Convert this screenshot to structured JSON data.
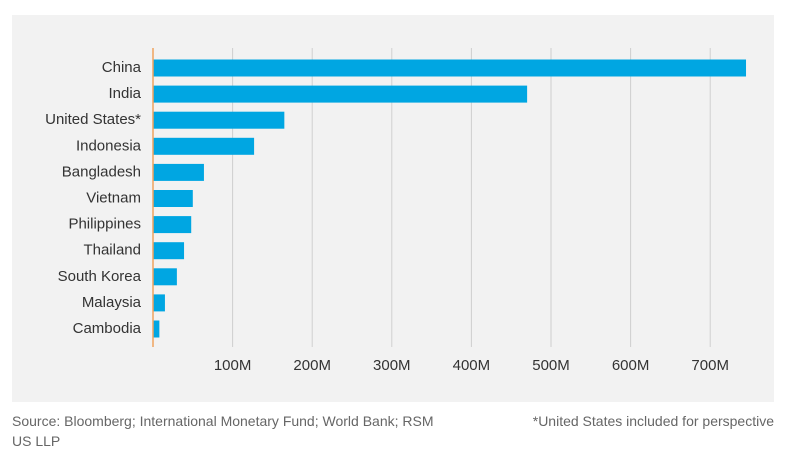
{
  "chart_data": {
    "type": "bar",
    "orientation": "horizontal",
    "categories": [
      "China",
      "India",
      "United States*",
      "Indonesia",
      "Bangladesh",
      "Vietnam",
      "Philippines",
      "Thailand",
      "South Korea",
      "Malaysia",
      "Cambodia"
    ],
    "values": [
      745,
      470,
      165,
      127,
      64,
      50,
      48,
      39,
      30,
      15,
      8
    ],
    "color": "#00a6e2",
    "axis_color": "#f0a35e",
    "xlim": [
      0,
      750
    ],
    "xticks": [
      {
        "value": 100,
        "label": "100M"
      },
      {
        "value": 200,
        "label": "200M"
      },
      {
        "value": 300,
        "label": "300M"
      },
      {
        "value": 400,
        "label": "400M"
      },
      {
        "value": 500,
        "label": "500M"
      },
      {
        "value": 600,
        "label": "600M"
      },
      {
        "value": 700,
        "label": "700M"
      }
    ],
    "grid": true,
    "source": "Source: Bloomberg; International Monetary Fund; World Bank; RSM US LLP",
    "note": "*United States included for perspective"
  }
}
